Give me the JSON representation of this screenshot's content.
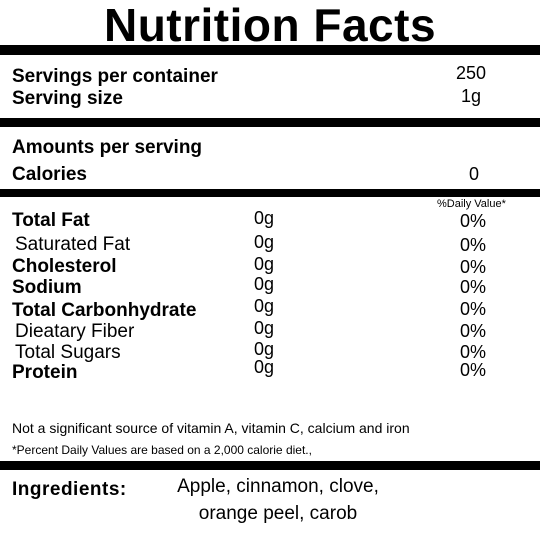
{
  "header": {
    "title": "Nutrition Facts"
  },
  "serving": {
    "rows": [
      [
        "Servings per container",
        "250"
      ],
      [
        "Serving size",
        "1g"
      ]
    ]
  },
  "amounts": {
    "heading": "Amounts per serving",
    "calories_label": "Calories",
    "calories_value": "0"
  },
  "nutrients": {
    "dv_header": "%Daily Value*",
    "rows": [
      {
        "name": "Total Fat",
        "amount": "0g",
        "dv": "0%",
        "bold": true
      },
      {
        "name": "Saturated Fat",
        "amount": "0g",
        "dv": "0%",
        "bold": false
      },
      {
        "name": "Cholesterol",
        "amount": "0g",
        "dv": "0%",
        "bold": true
      },
      {
        "name": "Sodium",
        "amount": "0g",
        "dv": "0%",
        "bold": true
      },
      {
        "name": "Total Carbonhydrate",
        "amount": "0g",
        "dv": "0%",
        "bold": true
      },
      {
        "name": "Dieatary Fiber",
        "amount": "0g",
        "dv": "0%",
        "bold": false
      },
      {
        "name": "Total Sugars",
        "amount": "0g",
        "dv": "0%",
        "bold": false
      },
      {
        "name": "Protein",
        "amount": "0g",
        "dv": "0%",
        "bold": true
      }
    ]
  },
  "footnotes": [
    "Not a significant source of vitamin A, vitamin C, calcium and iron",
    "*Percent Daily Values are based on a 2,000 calorie diet.,"
  ],
  "ingredients": {
    "label": "Ingredients:",
    "lines": [
      "Apple, cinnamon, clove,",
      "orange peel, carob"
    ]
  }
}
